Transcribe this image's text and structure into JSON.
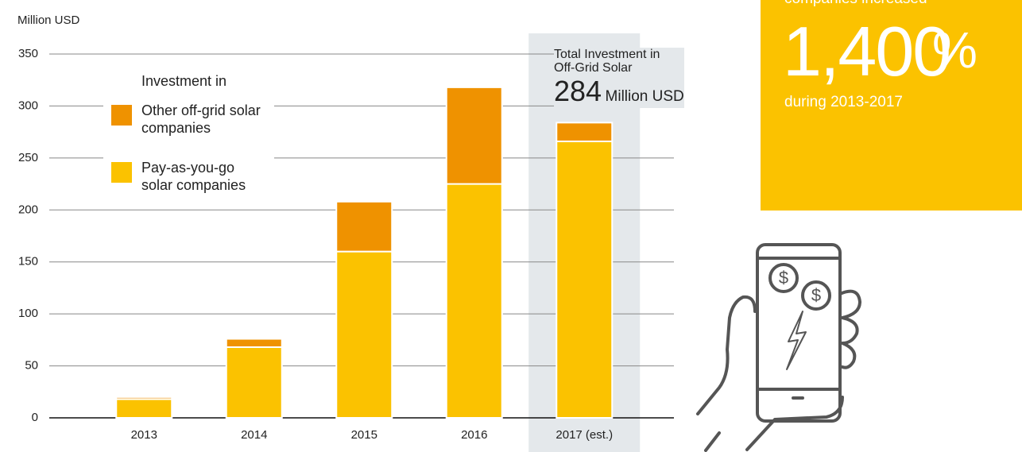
{
  "chart_data": {
    "type": "stacked_bar",
    "y_label": "Million USD",
    "categories": [
      "2013",
      "2014",
      "2015",
      "2016",
      "2017 (est.)"
    ],
    "series": [
      {
        "name": "Pay-as-you-go solar companies",
        "color": "#fbc200",
        "values": [
          18,
          68,
          160,
          225,
          266
        ]
      },
      {
        "name": "Other off-grid solar companies",
        "color": "#ef9200",
        "values": [
          2,
          8,
          48,
          93,
          18
        ]
      }
    ],
    "ylim": [
      0,
      350
    ],
    "yticks": [
      0,
      50,
      100,
      150,
      200,
      250,
      300,
      350
    ],
    "grid": true,
    "legend_title": "Investment in",
    "highlight_category": 4,
    "annotation": {
      "title": "Total Investment in Off-Grid Solar",
      "value": "284",
      "unit": "Million USD"
    }
  },
  "callout": {
    "pre": "companies increased",
    "number": "1,400",
    "suffix": "%",
    "post": "during 2013-2017"
  },
  "icon": {
    "symbol": "$"
  }
}
